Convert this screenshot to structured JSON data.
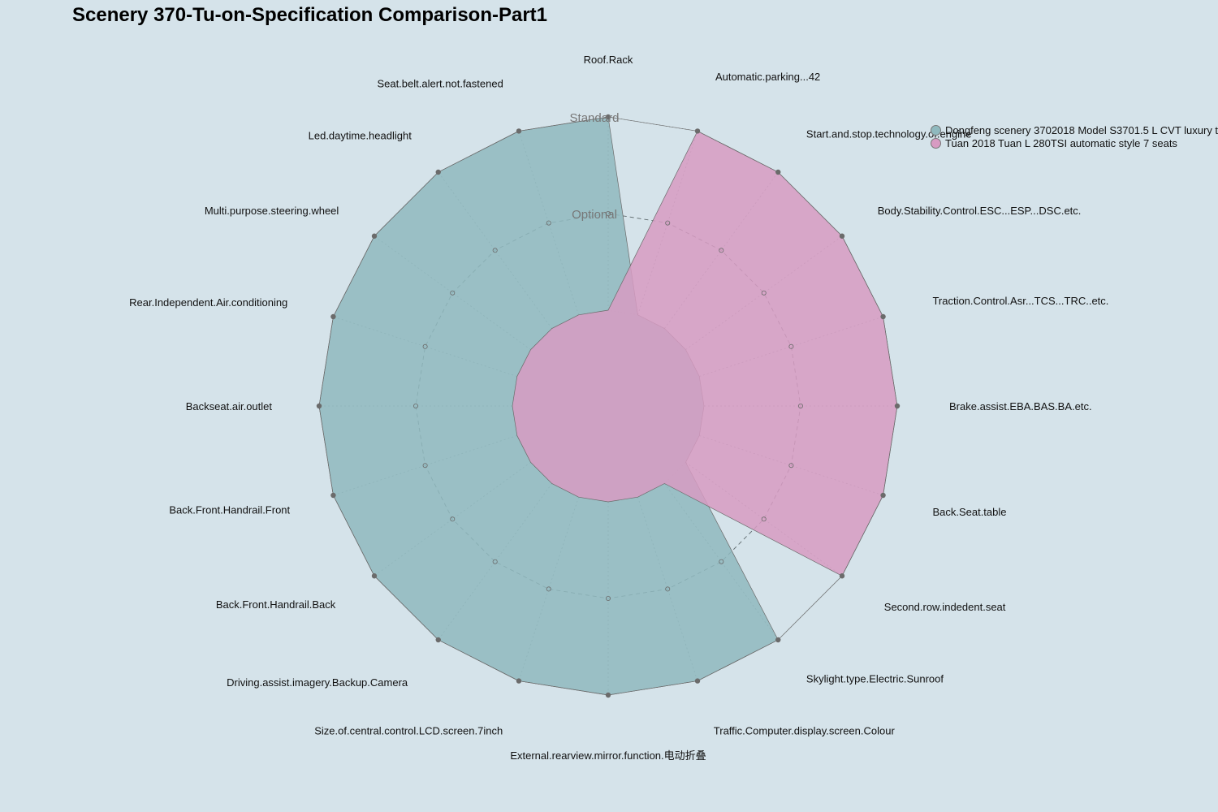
{
  "chart_data": {
    "type": "radar",
    "title": "Scenery 370-Tu-on-Specification Comparison-Part1",
    "axes": [
      "Roof.Rack",
      "Automatic.parking...42",
      "Start.and.stop.technology.of.engine",
      "Body.Stability.Control.ESC...ESP...DSC.etc.",
      "Traction.Control.Asr...TCS...TRC..etc.",
      "Brake.assist.EBA.BAS.BA.etc.",
      "Back.Seat.table",
      "Second.row.indedent.seat",
      "Skylight.type.Electric.Sunroof",
      "Traffic.Computer.display.screen.Colour",
      "External.rearview.mirror.function.电动折叠",
      "Size.of.central.control.LCD.screen.7inch",
      "Driving.assist.imagery.Backup.Camera",
      "Back.Front.Handrail.Back",
      "Back.Front.Handrail.Front",
      "Backseat.air.outlet",
      "Rear.Independent.Air.conditioning",
      "Multi.purpose.steering.wheel",
      "Led.daytime.headlight",
      "Seat.belt.alert.not.fastened"
    ],
    "levels": [
      "None",
      "Optional",
      "Standard"
    ],
    "level_labels_shown": [
      "Optional",
      "Standard"
    ],
    "series": [
      {
        "name": "Dongfeng scenery 3702018 Model S3701.5 L CVT luxury t",
        "color": "#8fb9be",
        "values": [
          2,
          0,
          0,
          0,
          0,
          0,
          0,
          0,
          2,
          2,
          2,
          2,
          2,
          2,
          2,
          2,
          2,
          2,
          2,
          2
        ]
      },
      {
        "name": "Tuan 2018 Tuan L 280TSI automatic style 7 seats",
        "color": "#d79bc2",
        "values": [
          0,
          2,
          2,
          2,
          2,
          2,
          2,
          2,
          0,
          0,
          0,
          0,
          0,
          0,
          0,
          0,
          0,
          0,
          0,
          0
        ]
      }
    ],
    "grid": true,
    "legend_position": "top-right"
  }
}
